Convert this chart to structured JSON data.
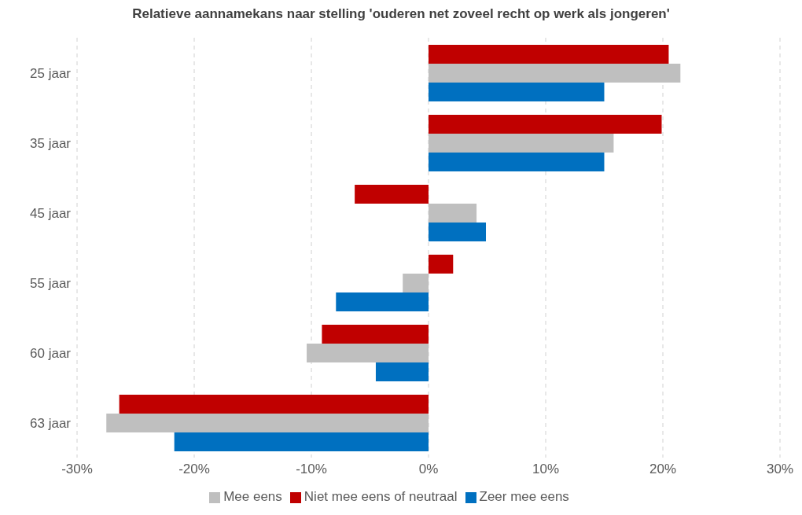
{
  "chart_data": {
    "type": "bar",
    "orientation": "horizontal",
    "title": "Relatieve aannamekans naar stelling 'ouderen net zoveel recht op werk als jongeren'",
    "categories": [
      "25 jaar",
      "35 jaar",
      "45 jaar",
      "55 jaar",
      "60 jaar",
      "63 jaar"
    ],
    "series": [
      {
        "name": "Niet mee eens of neutraal",
        "color": "#c00000",
        "values": [
          20.5,
          19.9,
          -6.3,
          2.1,
          -9.1,
          -26.4
        ]
      },
      {
        "name": "Mee eens",
        "color": "#bfbfbf",
        "values": [
          21.5,
          15.8,
          4.1,
          -2.2,
          -10.4,
          -27.5
        ]
      },
      {
        "name": "Zeer mee eens",
        "color": "#0070c0",
        "values": [
          15.0,
          15.0,
          4.9,
          -7.9,
          -4.5,
          -21.7
        ]
      }
    ],
    "xlim": [
      -30,
      30
    ],
    "xticks": [
      {
        "value": -30,
        "label": "-30%"
      },
      {
        "value": -20,
        "label": "-20%"
      },
      {
        "value": -10,
        "label": "-10%"
      },
      {
        "value": 0,
        "label": "0%"
      },
      {
        "value": 10,
        "label": "10%"
      },
      {
        "value": 20,
        "label": "20%"
      },
      {
        "value": 30,
        "label": "30%"
      }
    ],
    "grid": "x",
    "legend": "bottom"
  }
}
